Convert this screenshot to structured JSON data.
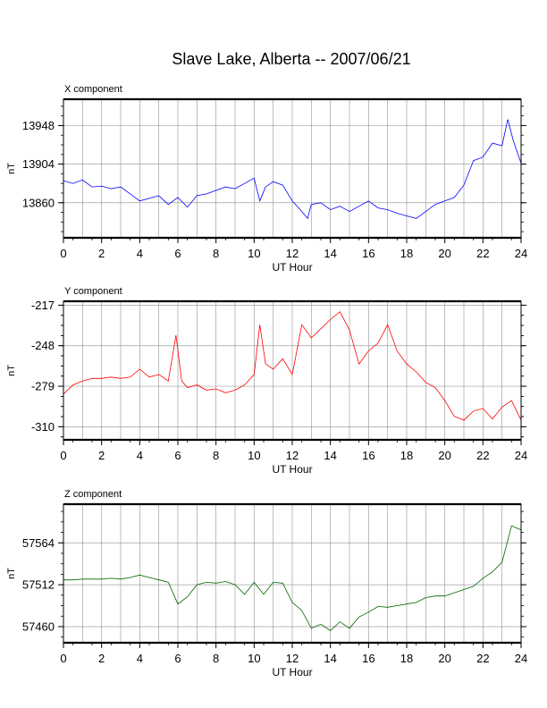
{
  "page": {
    "title": "Slave Lake, Alberta -- 2007/06/21"
  },
  "chart_data": [
    {
      "type": "line",
      "title": "X component",
      "xlabel": "UT Hour",
      "ylabel": "nT",
      "xlim": [
        0,
        24
      ],
      "ylim": [
        13820,
        13978
      ],
      "xticks": [
        0,
        2,
        4,
        6,
        8,
        10,
        12,
        14,
        16,
        18,
        20,
        22,
        24
      ],
      "yticks": [
        13860,
        13904,
        13948
      ],
      "grid": true,
      "color": "#0000ff",
      "series": [
        {
          "x": [
            0,
            0.5,
            1,
            1.5,
            2,
            2.5,
            3,
            3.5,
            4,
            4.5,
            5,
            5.5,
            6,
            6.5,
            7,
            7.5,
            8,
            8.5,
            9,
            9.5,
            10,
            10.3,
            10.6,
            11,
            11.5,
            12,
            12.5,
            12.8,
            13,
            13.5,
            14,
            14.5,
            15,
            15.5,
            16,
            16.5,
            17,
            17.5,
            18,
            18.5,
            19,
            19.5,
            20,
            20.5,
            21,
            21.5,
            22,
            22.5,
            23,
            23.3,
            23.6,
            24
          ],
          "y": [
            13885,
            13882,
            13886,
            13878,
            13879,
            13876,
            13878,
            13870,
            13862,
            13865,
            13868,
            13858,
            13866,
            13855,
            13868,
            13870,
            13874,
            13878,
            13876,
            13882,
            13888,
            13862,
            13878,
            13884,
            13880,
            13862,
            13850,
            13842,
            13858,
            13860,
            13852,
            13856,
            13850,
            13856,
            13862,
            13854,
            13852,
            13848,
            13845,
            13842,
            13850,
            13858,
            13862,
            13866,
            13880,
            13908,
            13912,
            13928,
            13925,
            13955,
            13930,
            13905
          ]
        }
      ]
    },
    {
      "type": "line",
      "title": "Y component",
      "xlabel": "UT Hour",
      "ylabel": "nT",
      "xlim": [
        0,
        24
      ],
      "ylim": [
        -320,
        -214
      ],
      "xticks": [
        0,
        2,
        4,
        6,
        8,
        10,
        12,
        14,
        16,
        18,
        20,
        22,
        24
      ],
      "yticks": [
        -217,
        -248,
        -279,
        -310
      ],
      "grid": true,
      "color": "#ff0000",
      "series": [
        {
          "x": [
            0,
            0.5,
            1,
            1.5,
            2,
            2.5,
            3,
            3.5,
            4,
            4.5,
            5,
            5.5,
            5.9,
            6.2,
            6.5,
            7,
            7.5,
            8,
            8.5,
            9,
            9.5,
            10,
            10.3,
            10.6,
            11,
            11.5,
            12,
            12.5,
            13,
            13.5,
            14,
            14.5,
            15,
            15.5,
            16,
            16.5,
            17,
            17.5,
            18,
            18.5,
            19,
            19.5,
            20,
            20.5,
            21,
            21.5,
            22,
            22.5,
            23,
            23.5,
            24
          ],
          "y": [
            -285,
            -278,
            -275,
            -273,
            -273,
            -272,
            -273,
            -272,
            -266,
            -272,
            -270,
            -275,
            -240,
            -275,
            -280,
            -278,
            -282,
            -281,
            -284,
            -282,
            -278,
            -270,
            -232,
            -262,
            -266,
            -258,
            -270,
            -232,
            -242,
            -235,
            -228,
            -222,
            -236,
            -262,
            -252,
            -246,
            -232,
            -252,
            -262,
            -268,
            -276,
            -280,
            -290,
            -302,
            -305,
            -298,
            -296,
            -304,
            -295,
            -290,
            -305
          ]
        }
      ]
    },
    {
      "type": "line",
      "title": "Z component",
      "xlabel": "UT Hour",
      "ylabel": "nT",
      "xlim": [
        0,
        24
      ],
      "ylim": [
        57440,
        57612
      ],
      "xticks": [
        0,
        2,
        4,
        6,
        8,
        10,
        12,
        14,
        16,
        18,
        20,
        22,
        24
      ],
      "yticks": [
        57460,
        57512,
        57564
      ],
      "grid": true,
      "color": "#006400",
      "series": [
        {
          "x": [
            0,
            0.5,
            1,
            1.5,
            2,
            2.5,
            3,
            3.5,
            4,
            4.5,
            5,
            5.5,
            6,
            6.5,
            7,
            7.5,
            8,
            8.5,
            9,
            9.5,
            10,
            10.5,
            11,
            11.5,
            12,
            12.5,
            13,
            13.5,
            14,
            14.5,
            15,
            15.5,
            16,
            16.5,
            17,
            17.5,
            18,
            18.5,
            19,
            19.5,
            20,
            20.5,
            21,
            21.5,
            22,
            22.5,
            23,
            23.5,
            24
          ],
          "y": [
            57518,
            57518,
            57519,
            57519,
            57519,
            57520,
            57519,
            57521,
            57524,
            57521,
            57518,
            57515,
            57488,
            57497,
            57512,
            57515,
            57514,
            57516,
            57512,
            57500,
            57515,
            57500,
            57515,
            57514,
            57490,
            57480,
            57458,
            57463,
            57455,
            57466,
            57458,
            57472,
            57478,
            57485,
            57484,
            57486,
            57488,
            57490,
            57496,
            57498,
            57498,
            57502,
            57506,
            57510,
            57520,
            57528,
            57540,
            57585,
            57580
          ]
        }
      ]
    }
  ]
}
